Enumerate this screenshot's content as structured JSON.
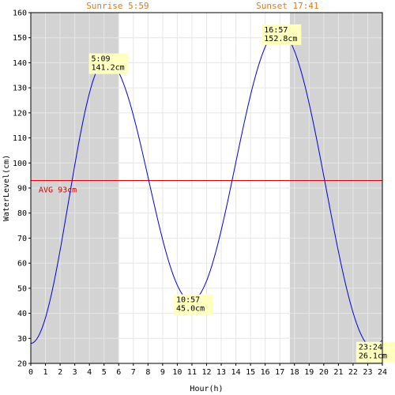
{
  "chart_data": {
    "type": "line",
    "xlabel": "Hour(h)",
    "ylabel": "WaterLevel(cm)",
    "xlim": [
      0,
      24
    ],
    "ylim": [
      20,
      160
    ],
    "x_ticks": [
      0,
      1,
      2,
      3,
      4,
      5,
      6,
      7,
      8,
      9,
      10,
      11,
      12,
      13,
      14,
      15,
      16,
      17,
      18,
      19,
      20,
      21,
      22,
      23,
      24
    ],
    "y_ticks": [
      20,
      30,
      40,
      50,
      60,
      70,
      80,
      90,
      100,
      110,
      120,
      130,
      140,
      150,
      160
    ],
    "grid": true,
    "sunrise": {
      "label": "Sunrise 5:59",
      "hour": 5.983
    },
    "sunset": {
      "label": "Sunset 17:41",
      "hour": 17.683
    },
    "night_color": "#d3d3d3",
    "line_color": "#0000dd",
    "avg": {
      "label": "AVG 93cm",
      "value": 93,
      "color": "#dd0000"
    },
    "extremes": [
      {
        "time": "5:09",
        "level": "141.2cm",
        "hour": 5.15,
        "value": 141.2
      },
      {
        "time": "10:57",
        "level": "45.0cm",
        "hour": 10.95,
        "value": 45.0
      },
      {
        "time": "16:57",
        "level": "152.8cm",
        "hour": 16.95,
        "value": 152.8
      },
      {
        "time": "23:24",
        "level": "26.1cm",
        "hour": 23.4,
        "value": 26.1
      }
    ],
    "start_value": 28,
    "end_value": 29
  }
}
